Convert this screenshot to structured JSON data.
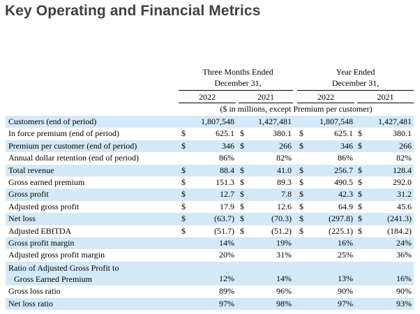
{
  "title": "Key Operating and Financial Metrics",
  "header": {
    "group1": [
      "Three Months Ended",
      "December 31,"
    ],
    "group2": [
      "Year Ended",
      "December 31,"
    ],
    "years": [
      "2022",
      "2021",
      "2022",
      "2021"
    ],
    "units_note": "($ in millions, except Premium per customer)"
  },
  "rows": [
    {
      "label": "Customers (end of period)",
      "cells": [
        [
          "",
          "1,807,548"
        ],
        [
          "",
          "1,427,481"
        ],
        [
          "",
          "1,807,548"
        ],
        [
          "",
          "1,427,481"
        ]
      ]
    },
    {
      "label": "In force premium (end of period)",
      "cells": [
        [
          "$",
          "625.1"
        ],
        [
          "$",
          "380.1"
        ],
        [
          "$",
          "625.1"
        ],
        [
          "$",
          "380.1"
        ]
      ]
    },
    {
      "label": "Premium per customer (end of period)",
      "cells": [
        [
          "$",
          "346"
        ],
        [
          "$",
          "266"
        ],
        [
          "$",
          "346"
        ],
        [
          "$",
          "266"
        ]
      ]
    },
    {
      "label": "Annual dollar retention (end of period)",
      "cells": [
        [
          "",
          "86%"
        ],
        [
          "",
          "82%"
        ],
        [
          "",
          "86%"
        ],
        [
          "",
          "82%"
        ]
      ]
    },
    {
      "label": "Total revenue",
      "cells": [
        [
          "$",
          "88.4"
        ],
        [
          "$",
          "41.0"
        ],
        [
          "$",
          "256.7"
        ],
        [
          "$",
          "128.4"
        ]
      ]
    },
    {
      "label": "Gross earned premium",
      "cells": [
        [
          "$",
          "151.3"
        ],
        [
          "$",
          "89.3"
        ],
        [
          "$",
          "490.5"
        ],
        [
          "$",
          "292.0"
        ]
      ]
    },
    {
      "label": "Gross profit",
      "cells": [
        [
          "$",
          "12.7"
        ],
        [
          "$",
          "7.8"
        ],
        [
          "$",
          "42.3"
        ],
        [
          "$",
          "31.2"
        ]
      ]
    },
    {
      "label": "Adjusted gross profit",
      "cells": [
        [
          "$",
          "17.9"
        ],
        [
          "$",
          "12.6"
        ],
        [
          "$",
          "64.9"
        ],
        [
          "$",
          "45.6"
        ]
      ]
    },
    {
      "label": "Net loss",
      "cells": [
        [
          "$",
          "(63.7)"
        ],
        [
          "$",
          "(70.3)"
        ],
        [
          "$",
          "(297.8)"
        ],
        [
          "$",
          "(241.3)"
        ]
      ]
    },
    {
      "label": "Adjusted EBITDA",
      "cells": [
        [
          "$",
          "(51.7)"
        ],
        [
          "$",
          "(51.2)"
        ],
        [
          "$",
          "(225.1)"
        ],
        [
          "$",
          "(184.2)"
        ]
      ]
    },
    {
      "label": "Gross profit margin",
      "cells": [
        [
          "",
          "14%"
        ],
        [
          "",
          "19%"
        ],
        [
          "",
          "16%"
        ],
        [
          "",
          "24%"
        ]
      ]
    },
    {
      "label": "Adjusted gross profit margin",
      "cells": [
        [
          "",
          "20%"
        ],
        [
          "",
          "31%"
        ],
        [
          "",
          "25%"
        ],
        [
          "",
          "36%"
        ]
      ]
    },
    {
      "label": "Ratio of Adjusted Gross Profit to",
      "label_line2": "Gross Earned Premium",
      "cells": [
        [
          "",
          "12%"
        ],
        [
          "",
          "14%"
        ],
        [
          "",
          "13%"
        ],
        [
          "",
          "16%"
        ]
      ]
    },
    {
      "label": "Gross loss ratio",
      "cells": [
        [
          "",
          "89%"
        ],
        [
          "",
          "96%"
        ],
        [
          "",
          "90%"
        ],
        [
          "",
          "90%"
        ]
      ]
    },
    {
      "label": "Net loss ratio",
      "cells": [
        [
          "",
          "97%"
        ],
        [
          "",
          "98%"
        ],
        [
          "",
          "97%"
        ],
        [
          "",
          "93%"
        ]
      ]
    }
  ]
}
